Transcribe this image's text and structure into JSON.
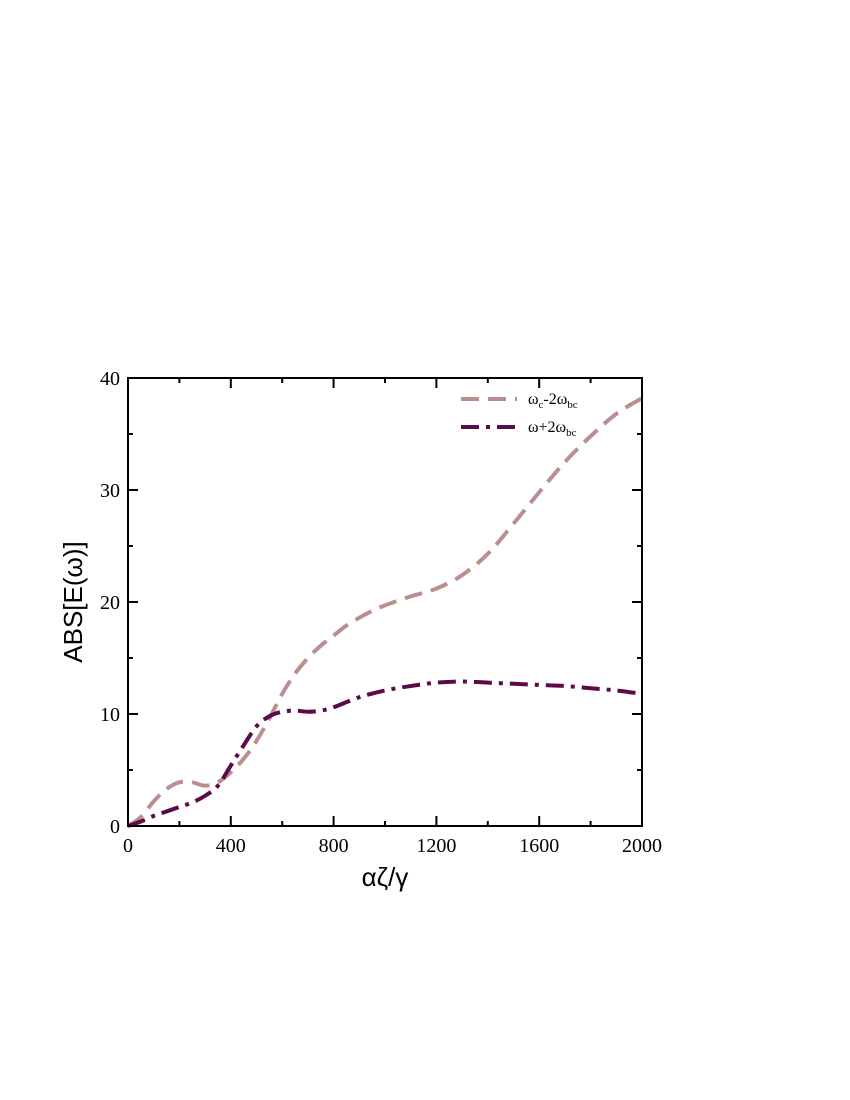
{
  "chart_data": {
    "type": "line",
    "xlabel": "αζ/γ",
    "ylabel": "ABS[E(ω)]",
    "xlim": [
      0,
      2000
    ],
    "ylim": [
      0,
      40
    ],
    "x_ticks": [
      0,
      400,
      800,
      1200,
      1600,
      2000
    ],
    "y_ticks": [
      0,
      10,
      20,
      30,
      40
    ],
    "x_minor_step": 200,
    "y_minor_step": 5,
    "grid": false,
    "legend_position": "top-right",
    "series": [
      {
        "name": "ω_c-2ω_bc",
        "legend_main": [
          "ω",
          "c",
          "-2ω",
          "bc"
        ],
        "color": "#bc8f8f",
        "dash": "dashed",
        "x": [
          0,
          50,
          100,
          150,
          200,
          250,
          300,
          350,
          400,
          450,
          500,
          550,
          600,
          650,
          700,
          750,
          800,
          850,
          900,
          950,
          1000,
          1100,
          1200,
          1300,
          1400,
          1500,
          1600,
          1700,
          1800,
          1900,
          2000
        ],
        "y": [
          0,
          0.8,
          2.2,
          3.3,
          3.9,
          3.9,
          3.6,
          3.9,
          4.8,
          6.0,
          7.6,
          9.6,
          11.8,
          13.6,
          15.0,
          16.1,
          17.0,
          17.9,
          18.6,
          19.2,
          19.7,
          20.5,
          21.2,
          22.4,
          24.3,
          27.0,
          29.8,
          32.5,
          34.8,
          36.8,
          38.2
        ]
      },
      {
        "name": "ω+2ω_bc",
        "legend_main": [
          "ω+2ω",
          "bc"
        ],
        "color": "#5c0a48",
        "dash": "dashdot",
        "x": [
          0,
          50,
          100,
          150,
          200,
          250,
          300,
          350,
          400,
          450,
          500,
          550,
          600,
          650,
          700,
          750,
          800,
          900,
          1000,
          1100,
          1200,
          1300,
          1400,
          1500,
          1600,
          1700,
          1800,
          1900,
          2000
        ],
        "y": [
          0,
          0.4,
          0.9,
          1.3,
          1.7,
          2.1,
          2.7,
          3.6,
          5.4,
          7.2,
          8.9,
          9.8,
          10.2,
          10.3,
          10.2,
          10.3,
          10.6,
          11.5,
          12.1,
          12.5,
          12.8,
          12.9,
          12.8,
          12.7,
          12.6,
          12.5,
          12.3,
          12.1,
          11.8
        ]
      }
    ]
  }
}
